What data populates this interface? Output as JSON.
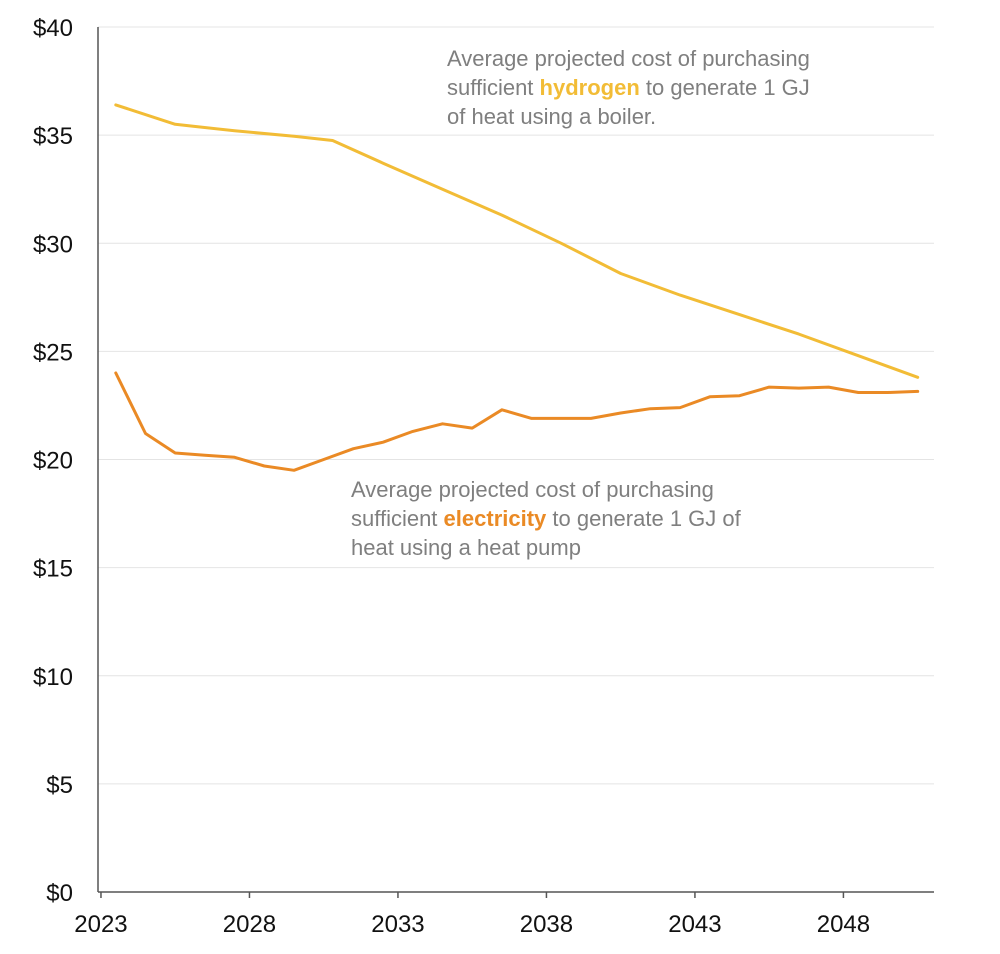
{
  "chart_data": {
    "type": "line",
    "title": "",
    "xlabel": "",
    "ylabel": "",
    "ylim": [
      0,
      40
    ],
    "xlim": [
      2023,
      2051
    ],
    "grid": true,
    "y_ticks": [
      "$0",
      "$5",
      "$10",
      "$15",
      "$20",
      "$25",
      "$30",
      "$35",
      "$40"
    ],
    "x_ticks": [
      "2023",
      "2028",
      "2033",
      "2038",
      "2043",
      "2048"
    ],
    "series": [
      {
        "key": "hydrogen",
        "color": "#f2bc36",
        "points": [
          [
            2023.5,
            36.4
          ],
          [
            2025.5,
            35.5
          ],
          [
            2027.5,
            35.2
          ],
          [
            2029.5,
            34.95
          ],
          [
            2030.8,
            34.75
          ],
          [
            2032.5,
            33.7
          ],
          [
            2034.5,
            32.5
          ],
          [
            2036.5,
            31.3
          ],
          [
            2038.5,
            30.0
          ],
          [
            2040.5,
            28.6
          ],
          [
            2042.5,
            27.6
          ],
          [
            2044.5,
            26.7
          ],
          [
            2046.5,
            25.8
          ],
          [
            2048.5,
            24.8
          ],
          [
            2050.5,
            23.8
          ]
        ]
      },
      {
        "key": "electricity",
        "color": "#ea8a25",
        "points": [
          [
            2023.5,
            24.0
          ],
          [
            2024.5,
            21.2
          ],
          [
            2025.5,
            20.3
          ],
          [
            2026.5,
            20.2
          ],
          [
            2027.5,
            20.1
          ],
          [
            2028.5,
            19.7
          ],
          [
            2029.5,
            19.5
          ],
          [
            2030.5,
            20.0
          ],
          [
            2031.5,
            20.5
          ],
          [
            2032.5,
            20.8
          ],
          [
            2033.5,
            21.3
          ],
          [
            2034.5,
            21.65
          ],
          [
            2035.5,
            21.45
          ],
          [
            2036.5,
            22.3
          ],
          [
            2037.5,
            21.9
          ],
          [
            2038.5,
            21.9
          ],
          [
            2039.5,
            21.9
          ],
          [
            2040.5,
            22.15
          ],
          [
            2041.5,
            22.35
          ],
          [
            2042.5,
            22.4
          ],
          [
            2043.5,
            22.9
          ],
          [
            2044.5,
            22.95
          ],
          [
            2045.5,
            23.35
          ],
          [
            2046.5,
            23.3
          ],
          [
            2047.5,
            23.35
          ],
          [
            2048.5,
            23.1
          ],
          [
            2049.5,
            23.1
          ],
          [
            2050.5,
            23.15
          ]
        ]
      }
    ],
    "annotations": {
      "hydrogen": {
        "line1": "Average projected cost of purchasing",
        "line2_before": "sufficient ",
        "line2_highlight": "hydrogen",
        "line2_after": " to generate 1 GJ",
        "line3": "of heat using a boiler."
      },
      "electricity": {
        "line1": "Average projected cost of purchasing",
        "line2_before": "sufficient ",
        "line2_highlight": "electricity",
        "line2_after": " to generate 1 GJ of",
        "line3": "heat using a heat pump"
      }
    }
  }
}
